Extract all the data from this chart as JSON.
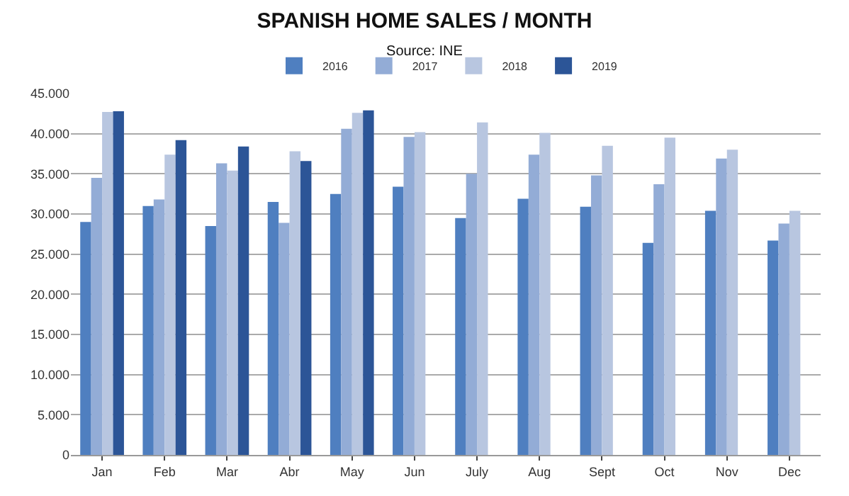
{
  "chart_data": {
    "type": "bar",
    "title": "SPANISH HOME SALES / MONTH",
    "subtitle": "Source: INE",
    "categories": [
      "Jan",
      "Feb",
      "Mar",
      "Abr",
      "May",
      "Jun",
      "July",
      "Aug",
      "Sept",
      "Oct",
      "Nov",
      "Dec"
    ],
    "series": [
      {
        "name": "2016",
        "color": "#4f7fc0",
        "values": [
          29000,
          31000,
          28500,
          31500,
          32500,
          33400,
          29500,
          31900,
          30900,
          26400,
          30400,
          26700
        ]
      },
      {
        "name": "2017",
        "color": "#93acd6",
        "values": [
          34500,
          31800,
          36300,
          28900,
          40600,
          39600,
          35000,
          37400,
          34800,
          33700,
          36900,
          28800
        ]
      },
      {
        "name": "2018",
        "color": "#b8c6e0",
        "values": [
          42700,
          37400,
          35400,
          37800,
          42600,
          40200,
          41400,
          40100,
          38500,
          39500,
          38000,
          30400
        ]
      },
      {
        "name": "2019",
        "color": "#2c5597",
        "values": [
          42800,
          39200,
          38400,
          36600,
          42900,
          null,
          null,
          null,
          null,
          null,
          null,
          null
        ]
      }
    ],
    "ylim": [
      0,
      45000
    ],
    "yticks": [
      {
        "value": 0,
        "label": "0"
      },
      {
        "value": 5000,
        "label": "5.000"
      },
      {
        "value": 10000,
        "label": "10.000"
      },
      {
        "value": 15000,
        "label": "15.000"
      },
      {
        "value": 20000,
        "label": "20.000"
      },
      {
        "value": 25000,
        "label": "25.000"
      },
      {
        "value": 30000,
        "label": "30.000"
      },
      {
        "value": 35000,
        "label": "35.000"
      },
      {
        "value": 40000,
        "label": "40.000"
      },
      {
        "value": 45000,
        "label": "45.000"
      }
    ],
    "grid": "y",
    "legend": "top"
  }
}
